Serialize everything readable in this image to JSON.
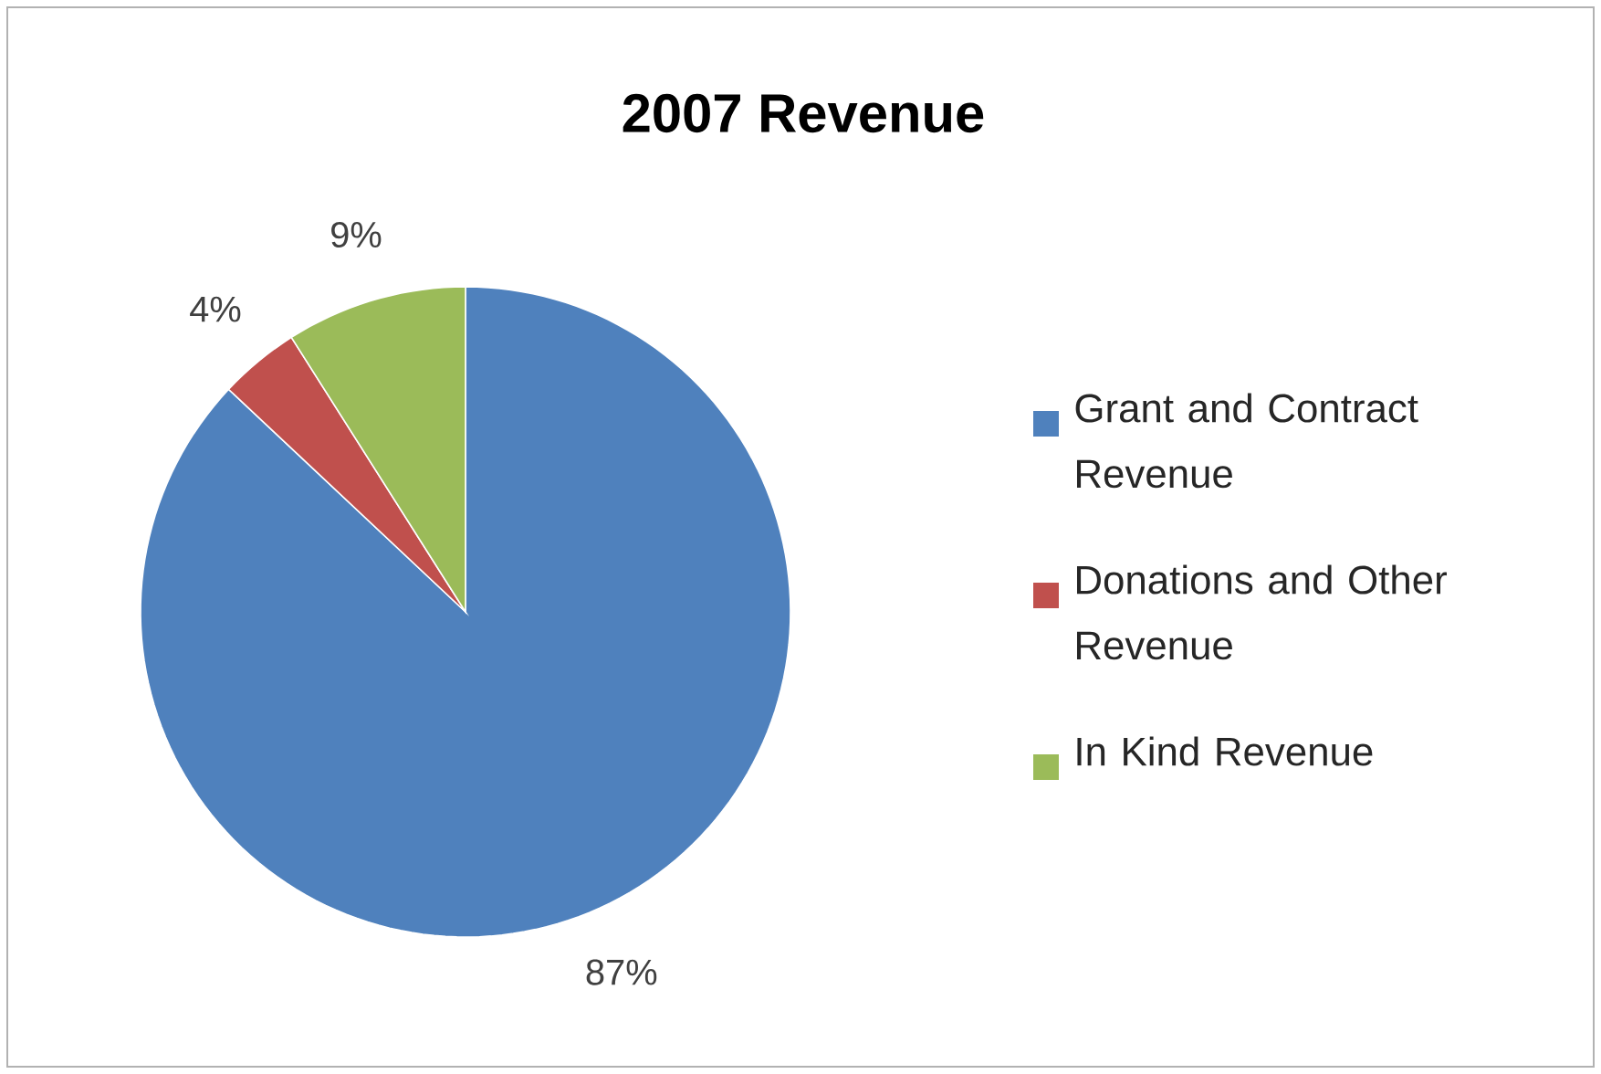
{
  "chart_data": {
    "type": "pie",
    "title": "2007 Revenue",
    "categories": [
      "Grant and Contract Revenue",
      "Donations and Other Revenue",
      "In Kind Revenue"
    ],
    "values": [
      87,
      4,
      9
    ],
    "colors": [
      "#4f81bd",
      "#c0504d",
      "#9bbb59"
    ],
    "value_labels": [
      "87%",
      "4%",
      "9%"
    ],
    "legend": "right"
  }
}
